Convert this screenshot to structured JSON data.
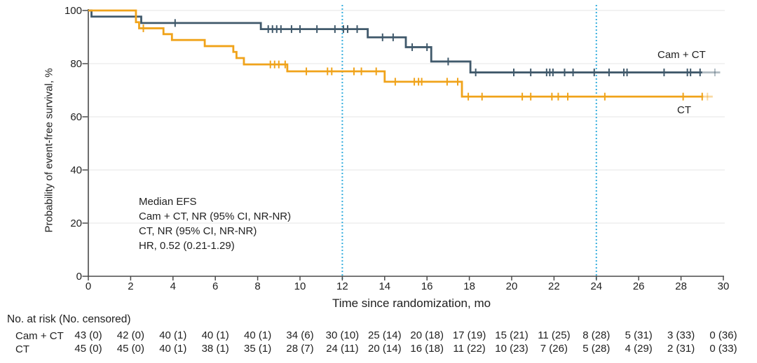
{
  "chart_data": {
    "type": "line",
    "subtype": "kaplan-meier-step",
    "xlabel": "Time since randomization, mo",
    "ylabel": "Probability of event-free survival, %",
    "xlim": [
      0,
      30
    ],
    "ylim": [
      0,
      100
    ],
    "xticks": [
      0,
      2,
      4,
      6,
      8,
      10,
      12,
      14,
      16,
      18,
      20,
      22,
      24,
      26,
      28,
      30
    ],
    "yticks": [
      0,
      20,
      40,
      60,
      80,
      100
    ],
    "grid": "horizontal",
    "reference_lines_x": [
      12,
      24
    ],
    "annotation": {
      "lines": [
        "Median EFS",
        "Cam + CT, NR (95% CI, NR-NR)",
        "CT, NR (95% CI, NR-NR)",
        "HR, 0.52 (0.21-1.29)"
      ]
    },
    "series": [
      {
        "name": "Cam + CT",
        "slug": "cam-ct",
        "color": "#40596b",
        "steps": [
          [
            0,
            100
          ],
          [
            0.15,
            97.7
          ],
          [
            2.5,
            95.3
          ],
          [
            8.15,
            93.0
          ],
          [
            13.2,
            89.9
          ],
          [
            15.0,
            86.2
          ],
          [
            16.2,
            80.8
          ],
          [
            18.05,
            76.7
          ]
        ],
        "solid_end_x": 29.0,
        "fade_end_x": 29.85,
        "censors": [
          [
            4.1,
            95.3
          ],
          [
            8.5,
            93.0
          ],
          [
            8.7,
            93.0
          ],
          [
            8.9,
            93.0
          ],
          [
            9.1,
            93.0
          ],
          [
            9.6,
            93.0
          ],
          [
            10.0,
            93.0
          ],
          [
            10.8,
            93.0
          ],
          [
            11.65,
            93.0
          ],
          [
            12.05,
            93.0
          ],
          [
            12.25,
            93.0
          ],
          [
            12.7,
            93.0
          ],
          [
            13.9,
            89.9
          ],
          [
            14.4,
            89.9
          ],
          [
            15.3,
            86.2
          ],
          [
            16.0,
            86.2
          ],
          [
            17.0,
            80.8
          ],
          [
            18.3,
            76.7
          ],
          [
            20.1,
            76.7
          ],
          [
            20.9,
            76.7
          ],
          [
            21.65,
            76.7
          ],
          [
            21.8,
            76.7
          ],
          [
            21.95,
            76.7
          ],
          [
            22.5,
            76.7
          ],
          [
            22.9,
            76.7
          ],
          [
            23.9,
            76.7
          ],
          [
            24.6,
            76.7
          ],
          [
            25.3,
            76.7
          ],
          [
            25.45,
            76.7
          ],
          [
            27.2,
            76.7
          ],
          [
            28.3,
            76.7
          ],
          [
            28.45,
            76.7
          ],
          [
            28.9,
            76.7
          ]
        ],
        "censors_faded": [
          [
            29.6,
            76.7
          ]
        ]
      },
      {
        "name": "CT",
        "slug": "ct",
        "color": "#f0a31a",
        "steps": [
          [
            0,
            100
          ],
          [
            2.25,
            95.6
          ],
          [
            2.4,
            93.3
          ],
          [
            3.55,
            91.1
          ],
          [
            3.95,
            88.9
          ],
          [
            5.5,
            86.6
          ],
          [
            6.85,
            84.4
          ],
          [
            7.0,
            82.1
          ],
          [
            7.35,
            79.7
          ],
          [
            9.4,
            77.1
          ],
          [
            14.0,
            73.2
          ],
          [
            17.65,
            67.6
          ]
        ],
        "solid_end_x": 29.05,
        "fade_end_x": 29.5,
        "censors": [
          [
            2.6,
            93.3
          ],
          [
            8.6,
            79.7
          ],
          [
            8.8,
            79.7
          ],
          [
            9.0,
            79.7
          ],
          [
            9.3,
            79.7
          ],
          [
            10.3,
            77.1
          ],
          [
            11.3,
            77.1
          ],
          [
            11.5,
            77.1
          ],
          [
            12.55,
            77.1
          ],
          [
            12.9,
            77.1
          ],
          [
            13.6,
            77.1
          ],
          [
            14.5,
            73.2
          ],
          [
            15.4,
            73.2
          ],
          [
            15.6,
            73.2
          ],
          [
            15.75,
            73.2
          ],
          [
            16.95,
            73.2
          ],
          [
            17.45,
            73.2
          ],
          [
            17.95,
            67.6
          ],
          [
            18.6,
            67.6
          ],
          [
            20.5,
            67.6
          ],
          [
            20.9,
            67.6
          ],
          [
            21.9,
            67.6
          ],
          [
            22.2,
            67.6
          ],
          [
            22.65,
            67.6
          ],
          [
            24.4,
            67.6
          ],
          [
            28.1,
            67.6
          ],
          [
            29.0,
            67.6
          ]
        ],
        "censors_faded": [
          [
            29.25,
            67.6
          ]
        ]
      }
    ]
  },
  "risk_table": {
    "header": "No. at risk (No. censored)",
    "times": [
      0,
      2,
      4,
      6,
      8,
      10,
      12,
      14,
      16,
      18,
      20,
      22,
      24,
      26,
      28,
      30
    ],
    "rows": [
      {
        "label": "Cam + CT",
        "values": [
          "43 (0)",
          "42 (0)",
          "40 (1)",
          "40 (1)",
          "40 (1)",
          "34 (6)",
          "30 (10)",
          "25 (14)",
          "20 (18)",
          "17 (19)",
          "15 (21)",
          "11 (25)",
          "8 (28)",
          "5 (31)",
          "3 (33)",
          "0 (36)"
        ]
      },
      {
        "label": "CT",
        "values": [
          "45 (0)",
          "45 (0)",
          "40 (1)",
          "38 (1)",
          "35 (1)",
          "28 (7)",
          "24 (11)",
          "20 (14)",
          "16 (18)",
          "11 (22)",
          "10 (23)",
          "7 (26)",
          "5 (28)",
          "4 (29)",
          "2 (31)",
          "0 (33)"
        ]
      }
    ]
  },
  "colors": {
    "grid": "#e9e9e9",
    "axis": "#4a4a4a",
    "reference_line": "#35aede",
    "text": "#212121"
  }
}
